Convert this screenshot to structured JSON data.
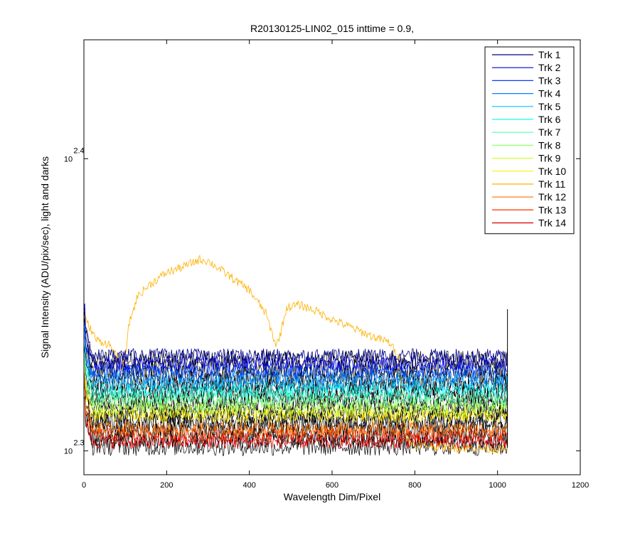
{
  "chart_data": {
    "type": "line",
    "title": "R20130125-LIN02_015 inttime = 0.9,",
    "xlabel": "Wavelength Dim/Pixel",
    "ylabel": "Signal Intensity (ADU/pix/sec), light and darks",
    "xlim": [
      0,
      1200
    ],
    "ylim_log10": [
      2.2918,
      2.4407
    ],
    "y_scale": "log",
    "xticks": [
      0,
      200,
      400,
      600,
      800,
      1000,
      1200
    ],
    "xtick_labels": [
      "0",
      "200",
      "400",
      "600",
      "800",
      "1000",
      "1200"
    ],
    "yticks": [
      {
        "base": "10",
        "exp": "2.3",
        "log10": 2.3
      },
      {
        "base": "10",
        "exp": "2.4",
        "log10": 2.4
      }
    ],
    "grid": false,
    "legend_position": "top-right",
    "series": [
      {
        "name": "Trk 1",
        "color": "#00008f",
        "baseline_log10": 2.3326
      },
      {
        "name": "Trk 2",
        "color": "#0000df",
        "baseline_log10": 2.33
      },
      {
        "name": "Trk 3",
        "color": "#0040ff",
        "baseline_log10": 2.3275
      },
      {
        "name": "Trk 4",
        "color": "#0080ff",
        "baseline_log10": 2.325
      },
      {
        "name": "Trk 5",
        "color": "#00c0ff",
        "baseline_log10": 2.3228
      },
      {
        "name": "Trk 6",
        "color": "#10ffef",
        "baseline_log10": 2.3205
      },
      {
        "name": "Trk 7",
        "color": "#50ffaf",
        "baseline_log10": 2.3183
      },
      {
        "name": "Trk 8",
        "color": "#90ff70",
        "baseline_log10": 2.316
      },
      {
        "name": "Trk 9",
        "color": "#cfff30",
        "baseline_log10": 2.314
      },
      {
        "name": "Trk 10",
        "color": "#ffef00",
        "baseline_log10": 2.312
      },
      {
        "name": "Trk 11",
        "color": "#ffb000",
        "baseline_log10": 2.31
      },
      {
        "name": "Trk 12",
        "color": "#ff7000",
        "baseline_log10": 2.3075
      },
      {
        "name": "Trk 13",
        "color": "#ff3000",
        "baseline_log10": 2.3055
      },
      {
        "name": "Trk 14",
        "color": "#df0000",
        "baseline_log10": 2.303
      }
    ],
    "dark_series_color": "#000000",
    "highlight_series": {
      "name": "Trk 11",
      "profile": [
        [
          0,
          2.346
        ],
        [
          30,
          2.338
        ],
        [
          60,
          2.3365
        ],
        [
          80,
          2.332
        ],
        [
          90,
          2.328
        ],
        [
          100,
          2.333
        ],
        [
          110,
          2.344
        ],
        [
          130,
          2.353
        ],
        [
          160,
          2.357
        ],
        [
          200,
          2.361
        ],
        [
          240,
          2.363
        ],
        [
          280,
          2.3655
        ],
        [
          300,
          2.365
        ],
        [
          330,
          2.362
        ],
        [
          360,
          2.359
        ],
        [
          400,
          2.355
        ],
        [
          440,
          2.347
        ],
        [
          455,
          2.34
        ],
        [
          465,
          2.336
        ],
        [
          475,
          2.34
        ],
        [
          490,
          2.349
        ],
        [
          520,
          2.35
        ],
        [
          560,
          2.348
        ],
        [
          600,
          2.345
        ],
        [
          650,
          2.342
        ],
        [
          700,
          2.339
        ],
        [
          740,
          2.337
        ],
        [
          760,
          2.332
        ],
        [
          770,
          2.32
        ],
        [
          780,
          2.304
        ],
        [
          800,
          2.302
        ],
        [
          900,
          2.301
        ],
        [
          1024,
          2.3005
        ]
      ]
    }
  }
}
